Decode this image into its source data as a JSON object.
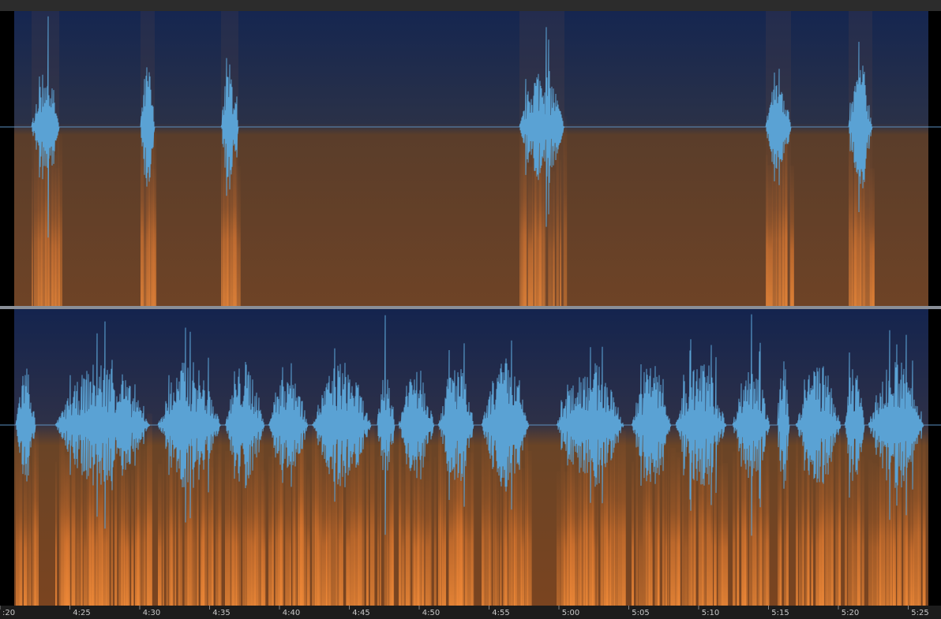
{
  "timeline": {
    "labels": [
      ":20",
      "4:25",
      "4:30",
      "4:35",
      "4:40",
      "4:45",
      "4:50",
      "4:55",
      "5:00",
      "5:05",
      "5:10",
      "5:15",
      "5:20",
      "5:25"
    ]
  }
}
